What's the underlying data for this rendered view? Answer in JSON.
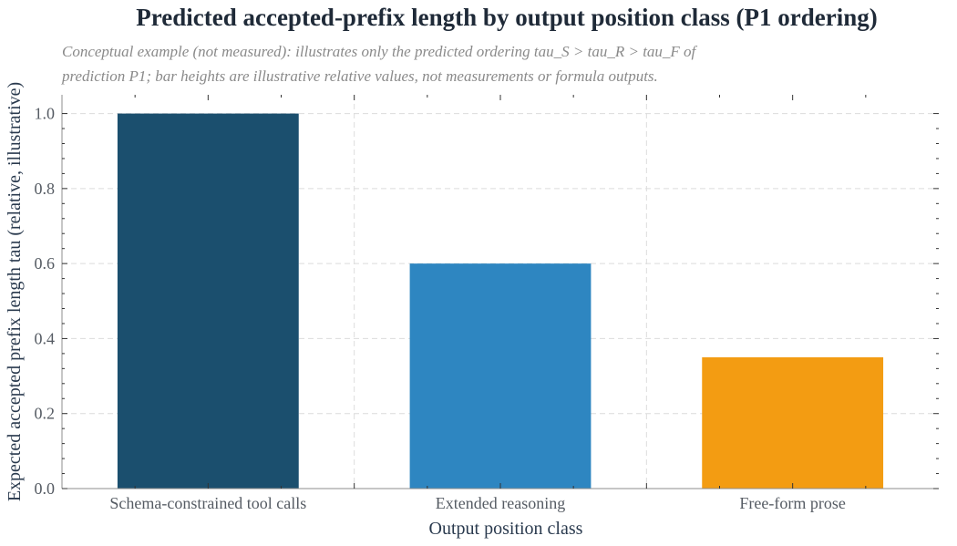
{
  "chart_data": {
    "type": "bar",
    "title": "Predicted accepted-prefix length by output position class (P1 ordering)",
    "subtitle": [
      "Conceptual example (not measured): illustrates only the predicted ordering tau_S > tau_R > tau_F of",
      "prediction P1; bar heights are illustrative relative values, not measurements or formula outputs."
    ],
    "categories": [
      "Schema-constrained tool calls",
      "Extended reasoning",
      "Free-form prose"
    ],
    "values": [
      1.0,
      0.6,
      0.35
    ],
    "colors": [
      "#1b4f6e",
      "#2e86c1",
      "#f39c12"
    ],
    "xlabel": "Output position class",
    "ylabel": "Expected accepted prefix length tau (relative, illustrative)",
    "ylim": [
      0,
      1.05
    ],
    "yticks": [
      0.0,
      0.2,
      0.4,
      0.6,
      0.8,
      1.0
    ],
    "ytick_labels": [
      "0.0",
      "0.2",
      "0.4",
      "0.6",
      "0.8",
      "1.0"
    ],
    "grid": true,
    "grid_style": "dashed"
  }
}
